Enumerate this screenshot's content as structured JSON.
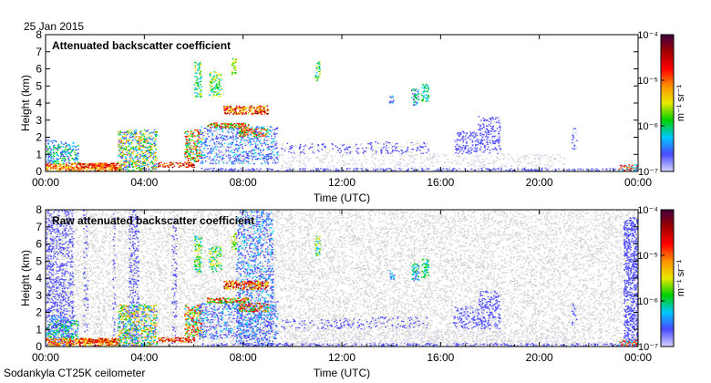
{
  "header": {
    "date": "25 Jan 2015"
  },
  "footer": {
    "instrument": "Sodankyla CT25K ceilometer"
  },
  "chart_data": [
    {
      "type": "heatmap",
      "title": "Attenuated backscatter coefficient",
      "xlabel": "Time (UTC)",
      "ylabel": "Height (km)",
      "xticks": [
        "00:00",
        "04:00",
        "08:00",
        "12:00",
        "16:00",
        "20:00",
        "00:00"
      ],
      "yticks": [
        "0",
        "1",
        "2",
        "3",
        "4",
        "5",
        "6",
        "7",
        "8"
      ],
      "xlim_hours": [
        0,
        24
      ],
      "ylim_km": [
        0,
        8
      ],
      "colorbar": {
        "label": "m⁻¹ sr⁻¹",
        "ticks": [
          "10⁻⁴",
          "10⁻⁵",
          "10⁻⁶",
          "10⁻⁷"
        ],
        "range_log10": [
          -7,
          -4
        ]
      }
    },
    {
      "type": "heatmap",
      "title": "Raw attenuated backscatter coefficient",
      "xlabel": "Time (UTC)",
      "ylabel": "Height (km)",
      "xticks": [
        "00:00",
        "04:00",
        "08:00",
        "12:00",
        "16:00",
        "20:00",
        "00:00"
      ],
      "yticks": [
        "0",
        "1",
        "2",
        "3",
        "4",
        "5",
        "6",
        "7",
        "8"
      ],
      "xlim_hours": [
        0,
        24
      ],
      "ylim_km": [
        0,
        8
      ],
      "colorbar": {
        "label": "m⁻¹ sr⁻¹",
        "ticks": [
          "10⁻⁴",
          "10⁻⁵",
          "10⁻⁶",
          "10⁻⁷"
        ],
        "range_log10": [
          -7,
          -4
        ]
      }
    }
  ],
  "colors": {
    "colormap": [
      "#d6d6ff",
      "#4a4aff",
      "#00c8ff",
      "#00d000",
      "#e8e800",
      "#ff9000",
      "#ff0000",
      "#a00000",
      "#400040"
    ],
    "noise": "#d2d2d2",
    "axis": "#000000"
  }
}
